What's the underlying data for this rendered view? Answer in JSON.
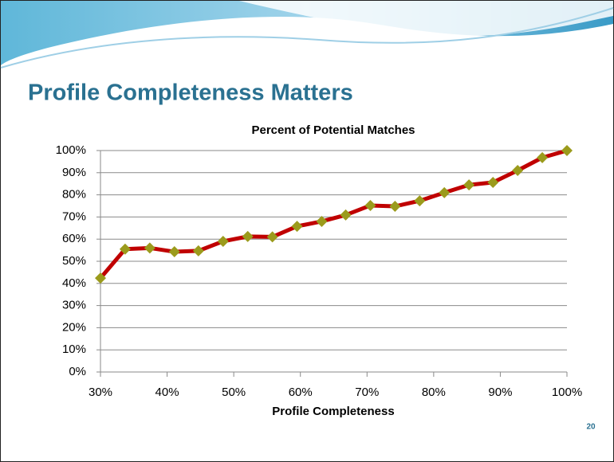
{
  "slide": {
    "title": "Profile Completeness Matters",
    "page_number": "20"
  },
  "chart_data": {
    "type": "line",
    "title": "Percent of Potential Matches",
    "x_label": "Profile Completeness",
    "x": [
      30,
      33.7,
      37.4,
      41.1,
      44.7,
      48.4,
      52.1,
      55.8,
      59.5,
      63.2,
      66.8,
      70.5,
      74.2,
      77.9,
      81.6,
      85.3,
      88.9,
      92.6,
      96.3,
      100
    ],
    "values": [
      42.4,
      55.5,
      56,
      54.3,
      54.7,
      59,
      61.2,
      61,
      65.8,
      68,
      70.9,
      75.2,
      74.8,
      77.3,
      81,
      84.5,
      85.6,
      91,
      96.8,
      100
    ],
    "color": "#c00000",
    "marker_color": "#9b9b1c",
    "xlim": [
      30,
      100
    ],
    "ylim": [
      0,
      100
    ],
    "xticks": [
      {
        "value": 30,
        "label": "30%"
      },
      {
        "value": 40,
        "label": "40%"
      },
      {
        "value": 50,
        "label": "50%"
      },
      {
        "value": 60,
        "label": "60%"
      },
      {
        "value": 70,
        "label": "70%"
      },
      {
        "value": 80,
        "label": "80%"
      },
      {
        "value": 90,
        "label": "90%"
      },
      {
        "value": 100,
        "label": "100%"
      }
    ],
    "yticks": [
      {
        "value": 0,
        "label": "0%"
      },
      {
        "value": 10,
        "label": "10%"
      },
      {
        "value": 20,
        "label": "20%"
      },
      {
        "value": 30,
        "label": "30%"
      },
      {
        "value": 40,
        "label": "40%"
      },
      {
        "value": 50,
        "label": "50%"
      },
      {
        "value": 60,
        "label": "60%"
      },
      {
        "value": 70,
        "label": "70%"
      },
      {
        "value": 80,
        "label": "80%"
      },
      {
        "value": 90,
        "label": "90%"
      },
      {
        "value": 100,
        "label": "100%"
      }
    ],
    "grid": true
  }
}
